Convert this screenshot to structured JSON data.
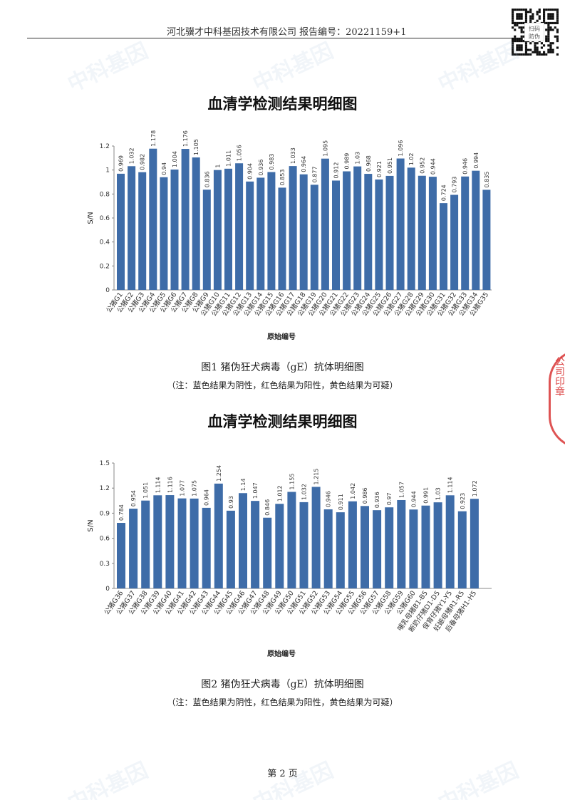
{
  "header": {
    "text": "河北骥才中科基因技术有限公司 报告编号：20221159+1",
    "qr_badge": "扫码\n防伪"
  },
  "watermark_text": "中科基因",
  "seal_text": "公司印章",
  "figures": [
    {
      "title": "血清学检测结果明细图",
      "caption": "图1 猪伪狂犬病毒（gE）抗体明细图",
      "note": "（注：蓝色结果为阴性，红色结果为阳性，黄色结果为可疑）"
    },
    {
      "title": "血清学检测结果明细图",
      "caption": "图2 猪伪狂犬病毒（gE）抗体明细图",
      "note": "（注：蓝色结果为阴性，红色结果为阳性，黄色结果为可疑）"
    }
  ],
  "footer": {
    "page": "第 2 页"
  },
  "colors": {
    "bar": "#3e6ca8"
  },
  "chart_data": [
    {
      "type": "bar",
      "xlabel": "原始编号",
      "ylabel": "S/N",
      "ylim": [
        0,
        1.2
      ],
      "yticks": [
        "0",
        "0.2",
        "0.4",
        "0.6",
        "0.8",
        "1",
        "1.2"
      ],
      "grid": false,
      "categories": [
        "公猪G1",
        "公猪G2",
        "公猪G3",
        "公猪G4",
        "公猪G5",
        "公猪G6",
        "公猪G7",
        "公猪G8",
        "公猪G9",
        "公猪G10",
        "公猪G11",
        "公猪G12",
        "公猪G13",
        "公猪G14",
        "公猪G15",
        "公猪G16",
        "公猪G17",
        "公猪G18",
        "公猪G19",
        "公猪G20",
        "公猪G21",
        "公猪G22",
        "公猪G23",
        "公猪G24",
        "公猪G25",
        "公猪G26",
        "公猪G27",
        "公猪G28",
        "公猪G29",
        "公猪G30",
        "公猪G31",
        "公猪G32",
        "公猪G33",
        "公猪G34",
        "公猪G35"
      ],
      "values": [
        0.969,
        1.032,
        0.982,
        1.178,
        0.94,
        1.004,
        1.176,
        1.105,
        0.836,
        1,
        1.011,
        1.056,
        0.904,
        0.936,
        0.983,
        0.853,
        1.033,
        0.964,
        0.877,
        1.095,
        0.912,
        0.989,
        1.03,
        0.968,
        0.921,
        0.951,
        1.096,
        1.02,
        0.952,
        0.944,
        0.724,
        0.793,
        0.946,
        0.994,
        0.835
      ],
      "labels": [
        "0.969",
        "1.032",
        "0.982",
        "1.178",
        "0.94",
        "1.004",
        "1.176",
        "1.105",
        "0.836",
        "1",
        "1.011",
        "1.056",
        "0.904",
        "0.936",
        "0.983",
        "0.853",
        "1.033",
        "0.964",
        "0.877",
        "1.095",
        "0.912",
        "0.989",
        "1.03",
        "0.968",
        "0.921",
        "0.951",
        "1.096",
        "1.02",
        "0.952",
        "0.944",
        "0.724",
        "0.793",
        "0.946",
        "0.994",
        "0.835"
      ]
    },
    {
      "type": "bar",
      "xlabel": "原始编号",
      "ylabel": "S/N",
      "ylim": [
        0,
        1.5
      ],
      "yticks": [
        "0",
        "0.3",
        "0.6",
        "0.9",
        "1.2",
        "1.5"
      ],
      "grid": false,
      "categories": [
        "公猪G36",
        "公猪G37",
        "公猪G38",
        "公猪G39",
        "公猪G40",
        "公猪G41",
        "公猪G42",
        "公猪G43",
        "公猪G44",
        "公猪G45",
        "公猪G46",
        "公猪G47",
        "公猪G48",
        "公猪G49",
        "公猪G50",
        "公猪G51",
        "公猪G52",
        "公猪G53",
        "公猪G54",
        "公猪G55",
        "公猪G56",
        "公猪G57",
        "公猪G58",
        "公猪G59",
        "公猪G60",
        "哺乳母猪B1-B5",
        "断奶仔猪D1-D5",
        "保育仔猪Y1-Y5",
        "妊娠母猪R1-R5",
        "后备母猪H1-H5"
      ],
      "values": [
        0.784,
        0.954,
        1.051,
        1.114,
        1.116,
        1.077,
        1.075,
        0.964,
        1.254,
        0.93,
        1.14,
        1.047,
        0.846,
        1.012,
        1.155,
        1.032,
        1.215,
        0.946,
        0.911,
        1.042,
        0.986,
        0.936,
        0.97,
        1.057,
        0.944,
        0.991,
        1.03,
        1.114,
        0.923,
        1.072
      ],
      "labels": [
        "0.784",
        "0.954",
        "1.051",
        "1.114",
        "1.116",
        "1.077",
        "1.075",
        "0.964",
        "1.254",
        "0.93",
        "1.14",
        "1.047",
        "0.846",
        "1.012",
        "1.155",
        "1.032",
        "1.215",
        "0.946",
        "0.911",
        "1.042",
        "0.986",
        "0.936",
        "0.97",
        "1.057",
        "0.944",
        "0.991",
        "1.03",
        "1.114",
        "0.923",
        "1.072"
      ]
    }
  ]
}
